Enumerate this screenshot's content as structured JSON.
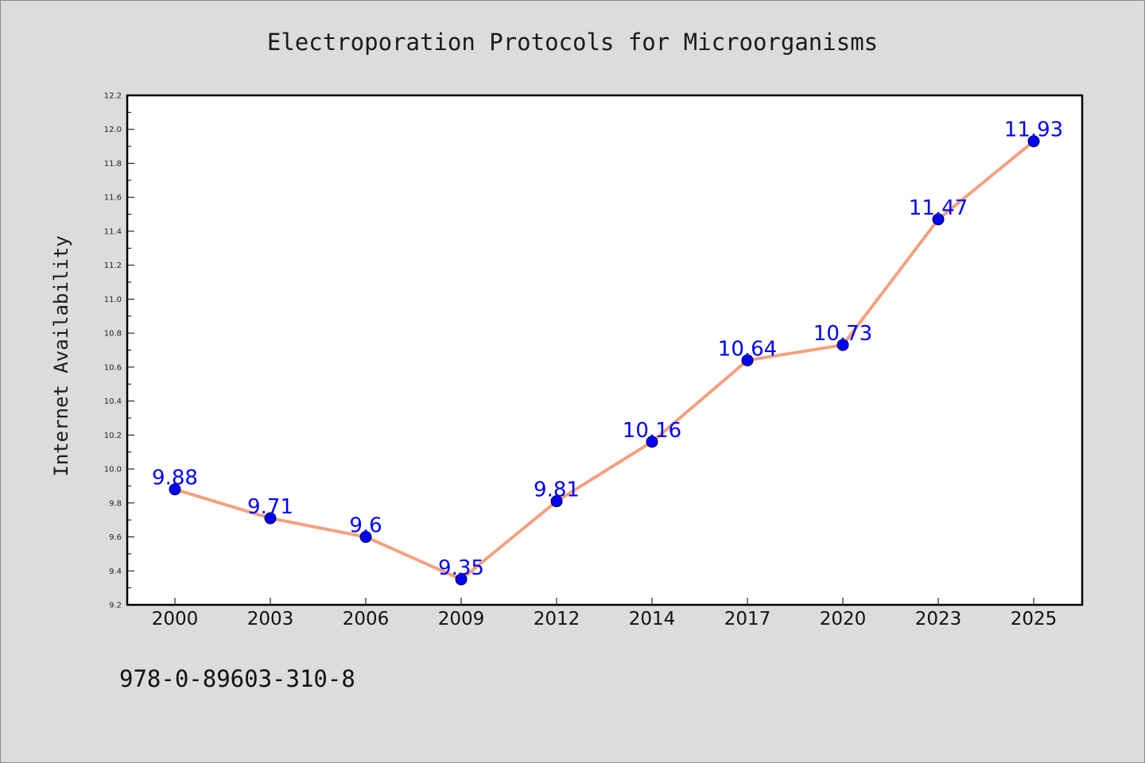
{
  "chart_data": {
    "type": "line",
    "title": "Electroporation Protocols for Microorganisms",
    "xlabel": "",
    "ylabel": "Internet Availability",
    "categories": [
      "2000",
      "2003",
      "2006",
      "2009",
      "2012",
      "2014",
      "2017",
      "2020",
      "2023",
      "2025"
    ],
    "values": [
      9.88,
      9.71,
      9.6,
      9.35,
      9.81,
      10.16,
      10.64,
      10.73,
      11.47,
      11.93
    ],
    "value_labels": [
      "9.88",
      "9.71",
      "9.6",
      "9.35",
      "9.81",
      "10.16",
      "10.64",
      "10.73",
      "11.47",
      "11.93"
    ],
    "ylim": [
      9.2,
      12.2
    ],
    "y_ticks": [
      "9.2",
      "9.4",
      "9.6",
      "9.8",
      "10.0",
      "10.2",
      "10.4",
      "10.6",
      "10.8",
      "11.0",
      "11.2",
      "11.4",
      "11.6",
      "11.8",
      "12.0",
      "12.2"
    ],
    "grid": false,
    "legend": "none",
    "line_color": "#f4a07f",
    "marker_color": "#0000ff",
    "label_color": "#0000ff"
  },
  "footer": {
    "isbn": "978-0-89603-310-8"
  }
}
